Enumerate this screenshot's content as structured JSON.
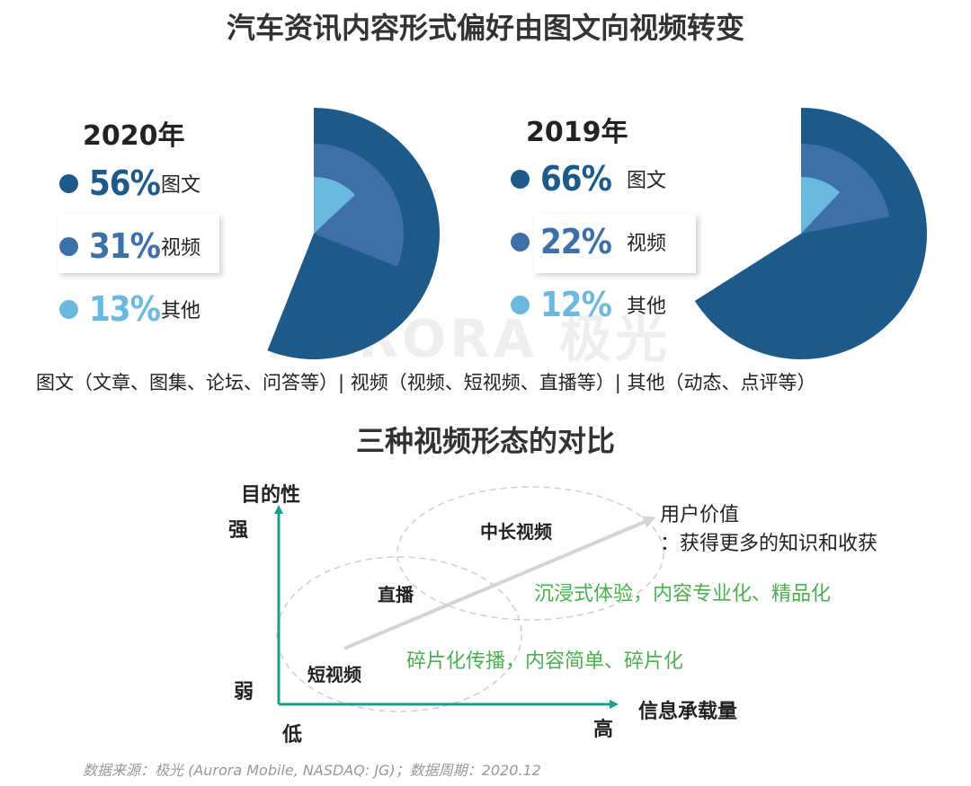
{
  "main_title": "汽车资讯内容形式偏好由图文向视频转变",
  "watermark": "AURORA 极光",
  "description": "图文（文章、图集、论坛、问答等）| 视频（视频、短视频、直播等）| 其他（动态、点评等）",
  "colors": {
    "graphic": "#1d5a8a",
    "video": "#3d6fa8",
    "other": "#6cb9e0",
    "axis": "#19a08a",
    "green_text": "#4caf50",
    "arrow": "#d5d5d5"
  },
  "chart_data": [
    {
      "type": "pie",
      "title": "2020年",
      "categories": [
        "图文",
        "视频",
        "其他"
      ],
      "values": [
        56,
        31,
        13
      ],
      "labels": [
        "56%",
        "31%",
        "13%"
      ]
    },
    {
      "type": "pie",
      "title": "2019年",
      "categories": [
        "图文",
        "视频",
        "其他"
      ],
      "values": [
        66,
        22,
        12
      ],
      "labels": [
        "66%",
        "22%",
        "12%"
      ]
    }
  ],
  "comparison": {
    "title": "三种视频形态的对比",
    "y_axis": {
      "label": "目的性",
      "high": "强",
      "low": "弱"
    },
    "x_axis": {
      "label": "信息承载量",
      "low": "低",
      "high": "高"
    },
    "zones": [
      "短视频",
      "直播",
      "中长视频"
    ],
    "user_value": [
      "用户价值",
      "：获得更多的知识和收获"
    ],
    "notes": [
      "沉浸式体验，内容专业化、精品化",
      "碎片化传播，内容简单、碎片化"
    ]
  },
  "source": "数据来源：极光 (Aurora Mobile, NASDAQ: JG)；数据周期：2020.12"
}
